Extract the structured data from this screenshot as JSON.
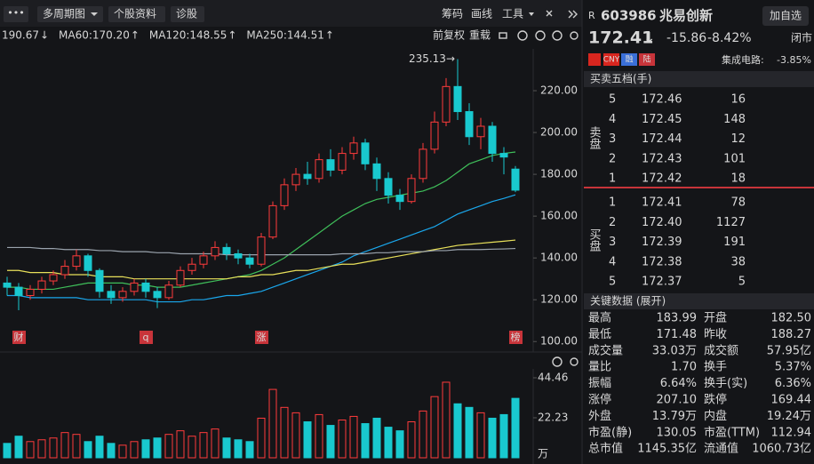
{
  "toolbar": {
    "left": [
      "多周期图",
      "个股资料",
      "诊股"
    ],
    "right": [
      "筹码",
      "画线",
      "工具"
    ],
    "chart_tools": [
      "前复权",
      "重载"
    ]
  },
  "chart_data": {
    "type": "candlestick",
    "series": [
      {
        "name": "190.67",
        "arrow": "↓",
        "arrow_color": "#2fd35b",
        "color": "#3fbf5a",
        "values": [
          126,
          126,
          125,
          125,
          125,
          126,
          127,
          128,
          128,
          128,
          128,
          127,
          127,
          126,
          126,
          126,
          127,
          128,
          129,
          130,
          131,
          132,
          134,
          137,
          140,
          144,
          148,
          152,
          156,
          160,
          163,
          166,
          168,
          169,
          170,
          171,
          172,
          174,
          177,
          181,
          185,
          187,
          189,
          190,
          190.67
        ]
      },
      {
        "name": "MA60:170.20",
        "arrow": "↑",
        "arrow_color": "#ff3b3b",
        "color": "#1aa7ec",
        "values": [
          122,
          122,
          121,
          121,
          121,
          121,
          121,
          120,
          120,
          120,
          120,
          120,
          120,
          119,
          119,
          119,
          120,
          120,
          121,
          122,
          122,
          123,
          124,
          126,
          128,
          130,
          132,
          134,
          136,
          138,
          141,
          143,
          145,
          147,
          149,
          151,
          153,
          155,
          158,
          161,
          163,
          165,
          167,
          168.5,
          170.2
        ]
      },
      {
        "name": "MA120:148.55",
        "arrow": "↑",
        "arrow_color": "#ff3b3b",
        "color": "#e8e05a",
        "values": [
          134,
          134,
          133,
          133,
          133,
          132,
          132,
          132,
          131,
          131,
          131,
          130,
          130,
          130,
          130,
          130,
          130,
          130,
          130,
          130,
          131,
          131,
          132,
          132,
          133,
          134,
          134,
          135,
          136,
          137,
          137,
          138,
          139,
          140,
          141,
          142,
          143,
          144,
          145,
          146,
          146.5,
          147,
          147.5,
          148,
          148.55
        ]
      },
      {
        "name": "MA250:144.51",
        "arrow": "↑",
        "arrow_color": "#ff3b3b",
        "color": "#9aa3ad",
        "values": [
          145,
          145,
          145,
          144.5,
          144.5,
          144,
          144,
          144,
          143.5,
          143.5,
          143,
          143,
          143,
          142.5,
          142.5,
          142,
          142,
          142,
          142,
          141.5,
          141.5,
          141.5,
          141.5,
          141.5,
          141.5,
          141.5,
          141.5,
          141.5,
          141.5,
          142,
          142,
          142,
          142.5,
          142.5,
          143,
          143,
          143,
          143.5,
          143.5,
          144,
          144,
          144,
          144.2,
          144.3,
          144.51
        ]
      }
    ],
    "candles": [
      [
        128,
        126,
        131,
        122
      ],
      [
        126,
        122,
        128,
        115
      ],
      [
        122,
        125,
        127,
        120
      ],
      [
        125,
        129,
        131,
        123
      ],
      [
        129,
        132,
        134,
        127
      ],
      [
        132,
        136,
        139,
        130
      ],
      [
        136,
        141,
        144,
        134
      ],
      [
        141,
        134,
        142,
        131
      ],
      [
        134,
        124,
        135,
        121
      ],
      [
        124,
        121,
        127,
        118
      ],
      [
        121,
        124,
        126,
        119
      ],
      [
        124,
        128,
        130,
        122
      ],
      [
        128,
        124,
        130,
        121
      ],
      [
        124,
        121,
        126,
        116
      ],
      [
        121,
        127,
        129,
        120
      ],
      [
        127,
        134,
        136,
        126
      ],
      [
        134,
        137,
        140,
        132
      ],
      [
        137,
        141,
        143,
        135
      ],
      [
        141,
        145,
        148,
        139
      ],
      [
        145,
        142,
        147,
        139
      ],
      [
        142,
        140,
        144,
        137
      ],
      [
        140,
        137,
        142,
        135
      ],
      [
        137,
        150,
        152,
        136
      ],
      [
        150,
        165,
        167,
        149
      ],
      [
        165,
        175,
        178,
        163
      ],
      [
        175,
        180,
        183,
        172
      ],
      [
        180,
        178,
        186,
        175
      ],
      [
        178,
        187,
        190,
        176
      ],
      [
        187,
        182,
        192,
        179
      ],
      [
        182,
        190,
        193,
        180
      ],
      [
        190,
        195,
        198,
        187
      ],
      [
        195,
        185,
        197,
        182
      ],
      [
        185,
        178,
        188,
        172
      ],
      [
        178,
        170,
        181,
        166
      ],
      [
        170,
        167,
        173,
        163
      ],
      [
        167,
        178,
        180,
        166
      ],
      [
        178,
        192,
        195,
        176
      ],
      [
        192,
        205,
        210,
        190
      ],
      [
        205,
        222,
        226,
        203
      ],
      [
        222,
        210,
        235.13,
        206
      ],
      [
        210,
        198,
        214,
        194
      ],
      [
        198,
        203,
        207,
        192
      ],
      [
        203,
        190,
        205,
        186
      ],
      [
        190,
        188.27,
        193,
        180
      ],
      [
        182.5,
        172.41,
        183.99,
        171.48
      ]
    ],
    "up_color": "#ff3b3b",
    "down_color": "#19c9cf",
    "ylim": [
      95,
      240
    ],
    "yticks": [
      100,
      120,
      140,
      160,
      180,
      200,
      {
        "value": 220,
        "label": "220.00"
      }
    ],
    "ytick_labels": [
      "100.00",
      "120.00",
      "140.00",
      "160.00",
      "180.00",
      "200.00"
    ],
    "peak_label": "235.13→",
    "events": [
      {
        "label": "财",
        "index": 1
      },
      {
        "label": "q",
        "index": 12
      },
      {
        "label": "涨",
        "index": 22
      },
      {
        "label": "榜",
        "index": 44
      }
    ],
    "volume": {
      "values": [
        8,
        12,
        9,
        10,
        11,
        14,
        13,
        9,
        12,
        8,
        7,
        9,
        10,
        11,
        13,
        15,
        12,
        14,
        16,
        11,
        10,
        9,
        22,
        38,
        28,
        25,
        20,
        24,
        18,
        21,
        23,
        19,
        22,
        17,
        15,
        20,
        26,
        34,
        42,
        30,
        28,
        25,
        22,
        24,
        33.03
      ],
      "ylim": [
        0,
        49.4
      ],
      "yticks": [
        22.23,
        44.46
      ],
      "unit": "万"
    }
  },
  "quote": {
    "prefix": "R",
    "code": "603986",
    "name": "兆易创新",
    "button": "加自选",
    "price": "172.41",
    "arrow": "↓",
    "change": "-15.86",
    "change_pct": "-8.42%",
    "status": "闭市",
    "tags": [
      "CNY",
      "融",
      "陆"
    ],
    "sector": "集成电路:",
    "sector_pct": "-3.85%"
  },
  "order_book": {
    "title": "买卖五档(手)",
    "sell_label": "卖盘",
    "buy_label": "买盘",
    "sell": [
      [
        "5",
        "172.46",
        "16"
      ],
      [
        "4",
        "172.45",
        "148"
      ],
      [
        "3",
        "172.44",
        "12"
      ],
      [
        "2",
        "172.43",
        "101"
      ],
      [
        "1",
        "172.42",
        "18"
      ]
    ],
    "buy": [
      [
        "1",
        "172.41",
        "78"
      ],
      [
        "2",
        "172.40",
        "1127"
      ],
      [
        "3",
        "172.39",
        "191"
      ],
      [
        "4",
        "172.38",
        "38"
      ],
      [
        "5",
        "172.37",
        "5"
      ]
    ]
  },
  "key_data": {
    "title": "关键数据 (展开)",
    "rows": [
      [
        [
          "最高",
          "183.99",
          "#2fd35b"
        ],
        [
          "开盘",
          "182.50",
          "#2fd35b"
        ]
      ],
      [
        [
          "最低",
          "171.48",
          "#2fd35b"
        ],
        [
          "昨收",
          "188.27",
          "#e6e6e6"
        ]
      ],
      [
        [
          "成交量",
          "33.03万",
          "#4aa8ff"
        ],
        [
          "成交额",
          "57.95亿",
          "#4aa8ff"
        ]
      ],
      [
        [
          "量比",
          "1.70",
          "#4aa8ff"
        ],
        [
          "换手",
          "5.37%",
          "#4aa8ff"
        ]
      ],
      [
        [
          "振幅",
          "6.64%",
          "#4aa8ff"
        ],
        [
          "换手(实)",
          "6.36%",
          "#4aa8ff"
        ]
      ],
      [
        [
          "涨停",
          "207.10",
          "#ff3b3b"
        ],
        [
          "跌停",
          "169.44",
          "#2fd35b"
        ]
      ],
      [
        [
          "外盘",
          "13.79万",
          "#ff3b3b"
        ],
        [
          "内盘",
          "19.24万",
          "#2fd35b"
        ]
      ],
      [
        [
          "市盈(静)",
          "130.05",
          "#4aa8ff"
        ],
        [
          "市盈(TTM)",
          "112.94",
          "#4aa8ff"
        ]
      ],
      [
        [
          "总市值",
          "1145.35亿",
          "#4aa8ff"
        ],
        [
          "流通值",
          "1060.73亿",
          "#4aa8ff"
        ]
      ]
    ]
  }
}
